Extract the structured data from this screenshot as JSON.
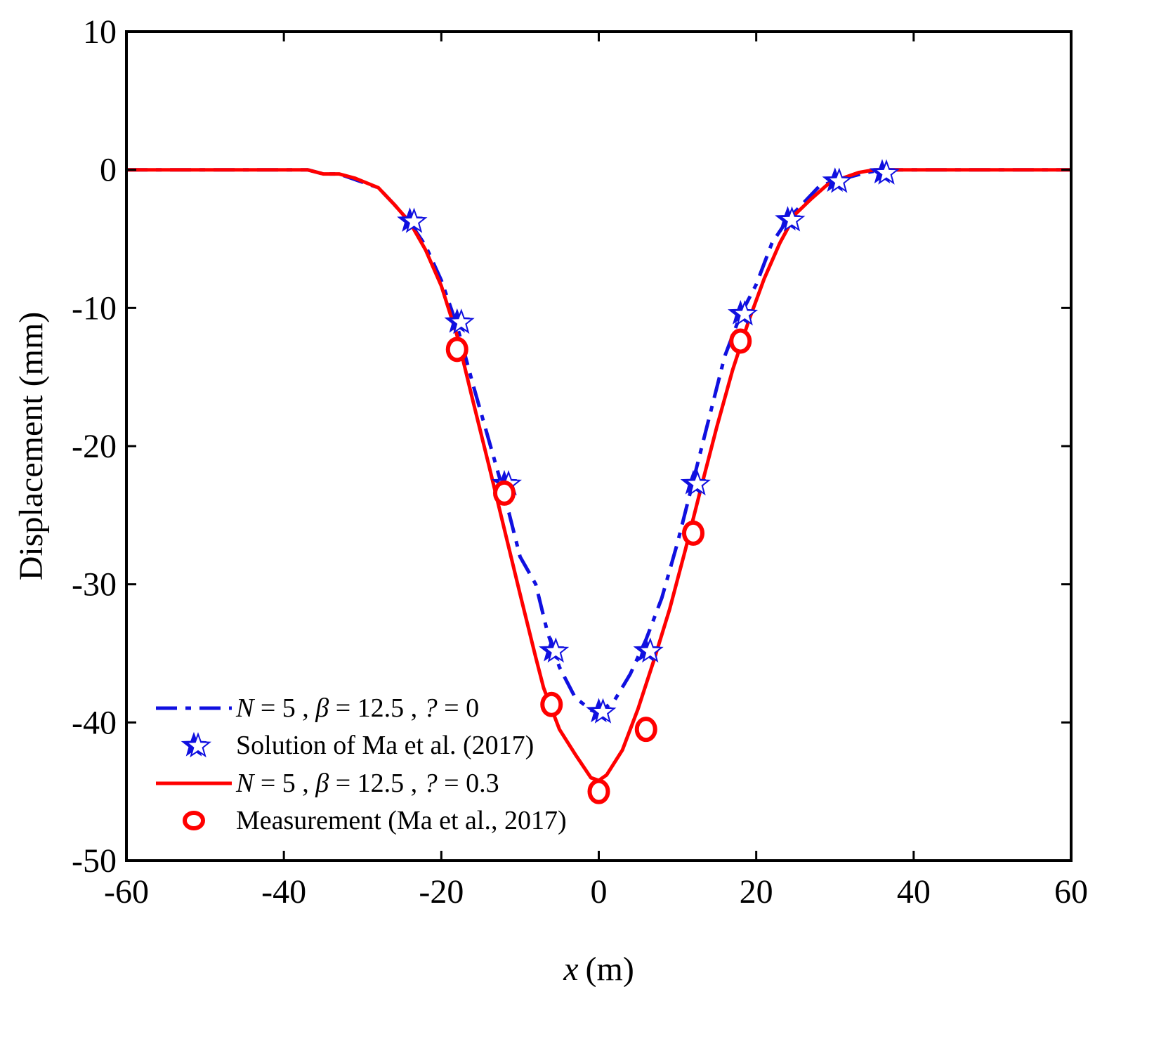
{
  "chart_data": {
    "type": "line",
    "title": "",
    "xlabel": {
      "var": "x",
      "unit": "(m)"
    },
    "ylabel": "Displacement (mm)",
    "xlim": [
      -60,
      60
    ],
    "ylim": [
      -50,
      10
    ],
    "xticks": [
      -60,
      -40,
      -20,
      0,
      20,
      40,
      60
    ],
    "yticks": [
      -50,
      -40,
      -30,
      -20,
      -10,
      0,
      10
    ],
    "xtick_labels": [
      "-60",
      "-40",
      "-20",
      "0",
      "20",
      "40",
      "60"
    ],
    "ytick_labels": [
      "-50",
      "-40",
      "-30",
      "-20",
      "-10",
      "0",
      "10"
    ],
    "grid": false,
    "legend_position": "bottom-left",
    "series": [
      {
        "name": "N = 5 , β = 12.5 , ? = 0",
        "legend_parts": [
          "N",
          " = 5 , ",
          "β",
          " = 12.5 , ",
          "?",
          " = 0"
        ],
        "style": "dashdot-line",
        "color": "#1010e0",
        "points": [
          [
            -60,
            0
          ],
          [
            -40,
            0
          ],
          [
            -37,
            0
          ],
          [
            -35,
            -0.3
          ],
          [
            -33,
            -0.3
          ],
          [
            -31,
            -0.7
          ],
          [
            -28,
            -1.3
          ],
          [
            -26,
            -2.5
          ],
          [
            -24,
            -3.8
          ],
          [
            -22,
            -5.5
          ],
          [
            -20,
            -8
          ],
          [
            -18,
            -11.3
          ],
          [
            -16,
            -15.5
          ],
          [
            -14,
            -19.5
          ],
          [
            -12,
            -23.5
          ],
          [
            -10,
            -28
          ],
          [
            -8,
            -30
          ],
          [
            -6.5,
            -33.5
          ],
          [
            -5,
            -36
          ],
          [
            -3,
            -38.2
          ],
          [
            -1,
            -39.1
          ],
          [
            0,
            -39.3
          ],
          [
            2,
            -38.4
          ],
          [
            4,
            -36.5
          ],
          [
            6,
            -34
          ],
          [
            8,
            -31
          ],
          [
            10,
            -27
          ],
          [
            12,
            -22.5
          ],
          [
            14,
            -18
          ],
          [
            16,
            -13.5
          ],
          [
            18,
            -10.5
          ],
          [
            20,
            -8.3
          ],
          [
            22,
            -5.3
          ],
          [
            24,
            -3.6
          ],
          [
            26,
            -2.4
          ],
          [
            28,
            -1.2
          ],
          [
            30,
            -0.8
          ],
          [
            32,
            -0.5
          ],
          [
            34,
            -0.2
          ],
          [
            36,
            0
          ],
          [
            40,
            0
          ],
          [
            60,
            0
          ]
        ]
      },
      {
        "name": "Solution of Ma et al. (2017)",
        "style": "star-markers",
        "color": "#1010e0",
        "points": [
          [
            -24,
            -3.7
          ],
          [
            -18,
            -11
          ],
          [
            -12,
            -22.7
          ],
          [
            -6,
            -34.8
          ],
          [
            0,
            -39.2
          ],
          [
            6,
            -34.8
          ],
          [
            12,
            -22.7
          ],
          [
            18,
            -10.4
          ],
          [
            24,
            -3.6
          ],
          [
            30,
            -0.8
          ],
          [
            36,
            -0.2
          ]
        ]
      },
      {
        "name": "N = 5 , β = 12.5 , ? = 0.3",
        "legend_parts": [
          "N",
          " = 5 , ",
          "β",
          " = 12.5 , ",
          "?",
          " = 0.3"
        ],
        "style": "solid-line",
        "color": "#ff0000",
        "points": [
          [
            -60,
            0
          ],
          [
            -37,
            0
          ],
          [
            -35,
            -0.3
          ],
          [
            -33,
            -0.3
          ],
          [
            -31,
            -0.6
          ],
          [
            -28,
            -1.3
          ],
          [
            -26,
            -2.5
          ],
          [
            -24,
            -3.8
          ],
          [
            -22,
            -5.8
          ],
          [
            -20,
            -8.4
          ],
          [
            -18,
            -12
          ],
          [
            -16,
            -16.7
          ],
          [
            -14,
            -21.3
          ],
          [
            -12,
            -26
          ],
          [
            -10,
            -30.7
          ],
          [
            -8,
            -35.3
          ],
          [
            -7,
            -37.5
          ],
          [
            -5,
            -40.5
          ],
          [
            -3,
            -42.3
          ],
          [
            -1,
            -44
          ],
          [
            0,
            -44.2
          ],
          [
            1,
            -43.8
          ],
          [
            3,
            -42
          ],
          [
            5,
            -39
          ],
          [
            7,
            -35.5
          ],
          [
            9,
            -31.8
          ],
          [
            11,
            -27.5
          ],
          [
            13,
            -23
          ],
          [
            15,
            -18.6
          ],
          [
            17,
            -14.5
          ],
          [
            19,
            -11
          ],
          [
            21,
            -7.9
          ],
          [
            23,
            -5.3
          ],
          [
            25,
            -3.2
          ],
          [
            27,
            -2.1
          ],
          [
            29,
            -1.1
          ],
          [
            31,
            -0.6
          ],
          [
            33,
            -0.2
          ],
          [
            35,
            0
          ],
          [
            60,
            0
          ]
        ]
      },
      {
        "name": "Measurement (Ma et al., 2017)",
        "style": "circle-markers",
        "color": "#ff0000",
        "points": [
          [
            -18,
            -13
          ],
          [
            -12,
            -23.4
          ],
          [
            -6,
            -38.7
          ],
          [
            0,
            -45
          ],
          [
            6,
            -40.5
          ],
          [
            12,
            -26.3
          ],
          [
            18,
            -12.4
          ]
        ]
      }
    ]
  }
}
